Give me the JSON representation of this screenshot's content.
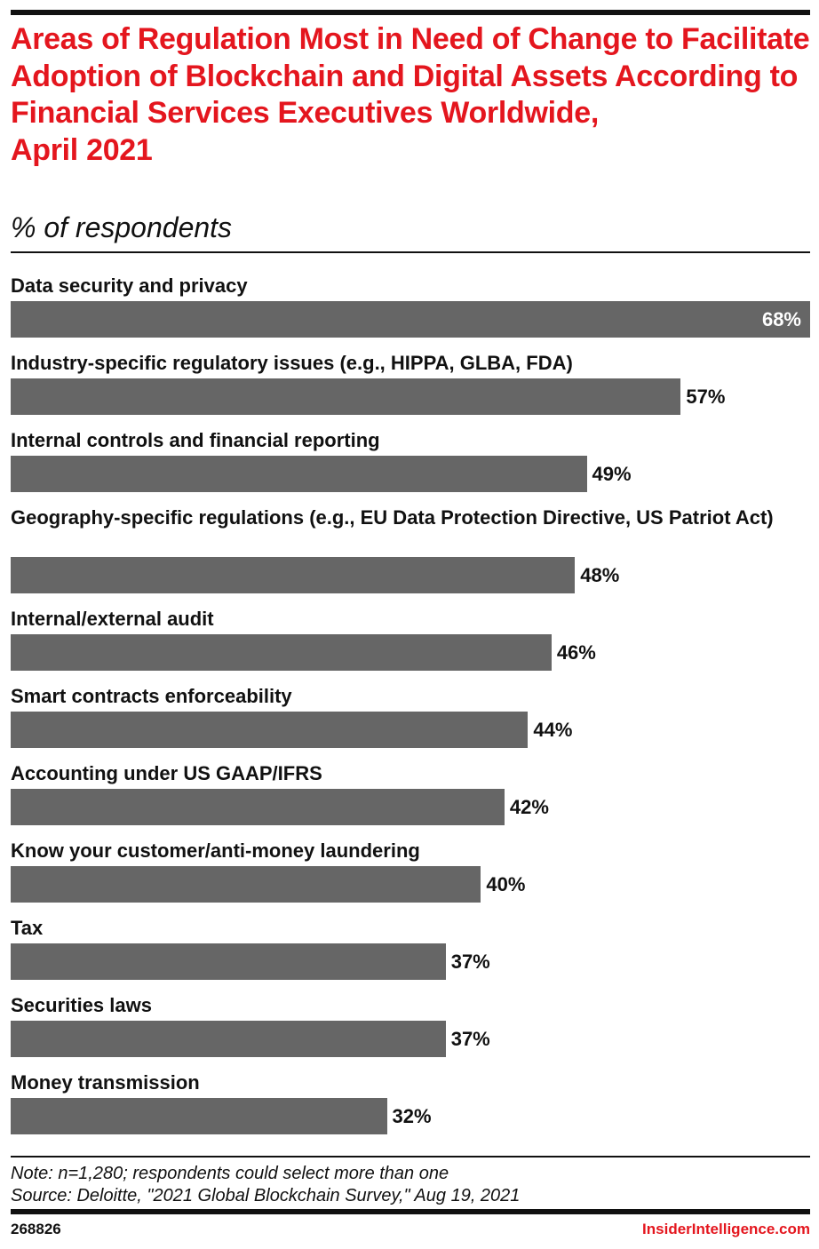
{
  "header": {
    "title": "Areas of Regulation Most in Need of Change to Facilitate Adoption of Blockchain and Digital Assets According to Financial Services Executives Worldwide,",
    "title_date": "April 2021",
    "subtitle": "% of respondents"
  },
  "chart_data": {
    "type": "bar",
    "orientation": "horizontal",
    "title": "Areas of Regulation Most in Need of Change to Facilitate Adoption of Blockchain and Digital Assets According to Financial Services Executives Worldwide, April 2021",
    "subtitle": "% of respondents",
    "categories": [
      "Data security and privacy",
      "Industry-specific regulatory issues (e.g., HIPPA, GLBA, FDA)",
      "Internal controls and financial reporting",
      "Geography-specific regulations (e.g., EU Data Protection Directive, US Patriot Act)",
      "Internal/external audit",
      "Smart contracts enforceability",
      "Accounting under US GAAP/IFRS",
      "Know your customer/anti-money laundering",
      "Tax",
      "Securities laws",
      "Money transmission"
    ],
    "values": [
      68,
      57,
      49,
      48,
      46,
      44,
      42,
      40,
      37,
      37,
      32
    ],
    "labels": [
      "68%",
      "57%",
      "49%",
      "48%",
      "46%",
      "44%",
      "42%",
      "40%",
      "37%",
      "37%",
      "32%"
    ],
    "xlim": [
      0,
      68
    ],
    "grid": false,
    "bar_color": "#666666"
  },
  "footer": {
    "note": "Note: n=1,280; respondents could select more than one",
    "source": "Source: Deloitte, \"2021 Global Blockchain Survey,\" Aug 19, 2021",
    "chart_id": "268826",
    "brand": "InsiderIntelligence.com"
  },
  "colors": {
    "title": "#e4161e",
    "bar": "#666666"
  }
}
